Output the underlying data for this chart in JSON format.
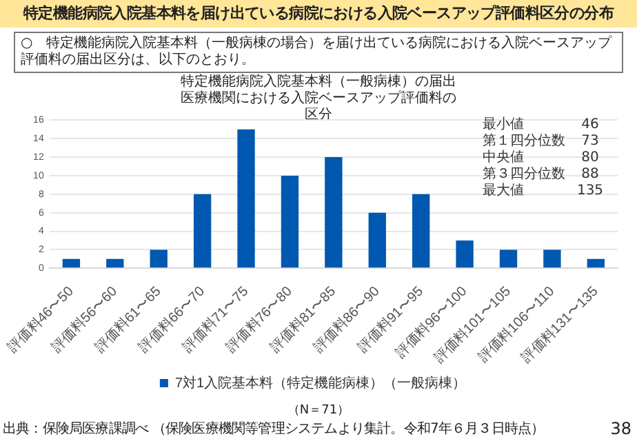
{
  "chart_data": {
    "type": "bar",
    "title": "特定機能病院入院基本料を届け出ている病院における入院ベースアップ評価料区分の分布",
    "subtitle": "特定機能病院入院基本料（一般病棟）の届出医療機関における入院ベースアップ評価料の区分",
    "categories": [
      "評価料46〜50",
      "評価料56〜60",
      "評価料61〜65",
      "評価料66〜70",
      "評価料71〜75",
      "評価料76〜80",
      "評価料81〜85",
      "評価料86〜90",
      "評価料91〜95",
      "評価料96〜100",
      "評価料101〜105",
      "評価料106〜110",
      "評価料131〜135"
    ],
    "series": [
      {
        "name": "7対1入院基本料（特定機能病棟）（一般病棟）",
        "color": "#0058b0",
        "values": [
          1,
          1,
          2,
          8,
          15,
          10,
          12,
          6,
          8,
          3,
          2,
          2,
          1
        ]
      }
    ],
    "ylim": [
      0,
      16
    ],
    "yticks": [
      0,
      2,
      4,
      6,
      8,
      10,
      12,
      14,
      16
    ],
    "grid": "y",
    "legend": "bottom",
    "annotations": [
      "○　特定機能病院入院基本料（一般病棟の場合）を届け出ている病院における入院ベースアップ評価料の届出区分は、以下のとおり。",
      "最小値",
      "46",
      "第１四分位数",
      "73",
      "中央値",
      "80",
      "第３四分位数",
      "88",
      "最大値",
      "135",
      "（N＝71）",
      "出典：保険局医療課調べ （保険医療機関等管理システムより集計。令和7年６月３日時点）",
      "38"
    ]
  }
}
